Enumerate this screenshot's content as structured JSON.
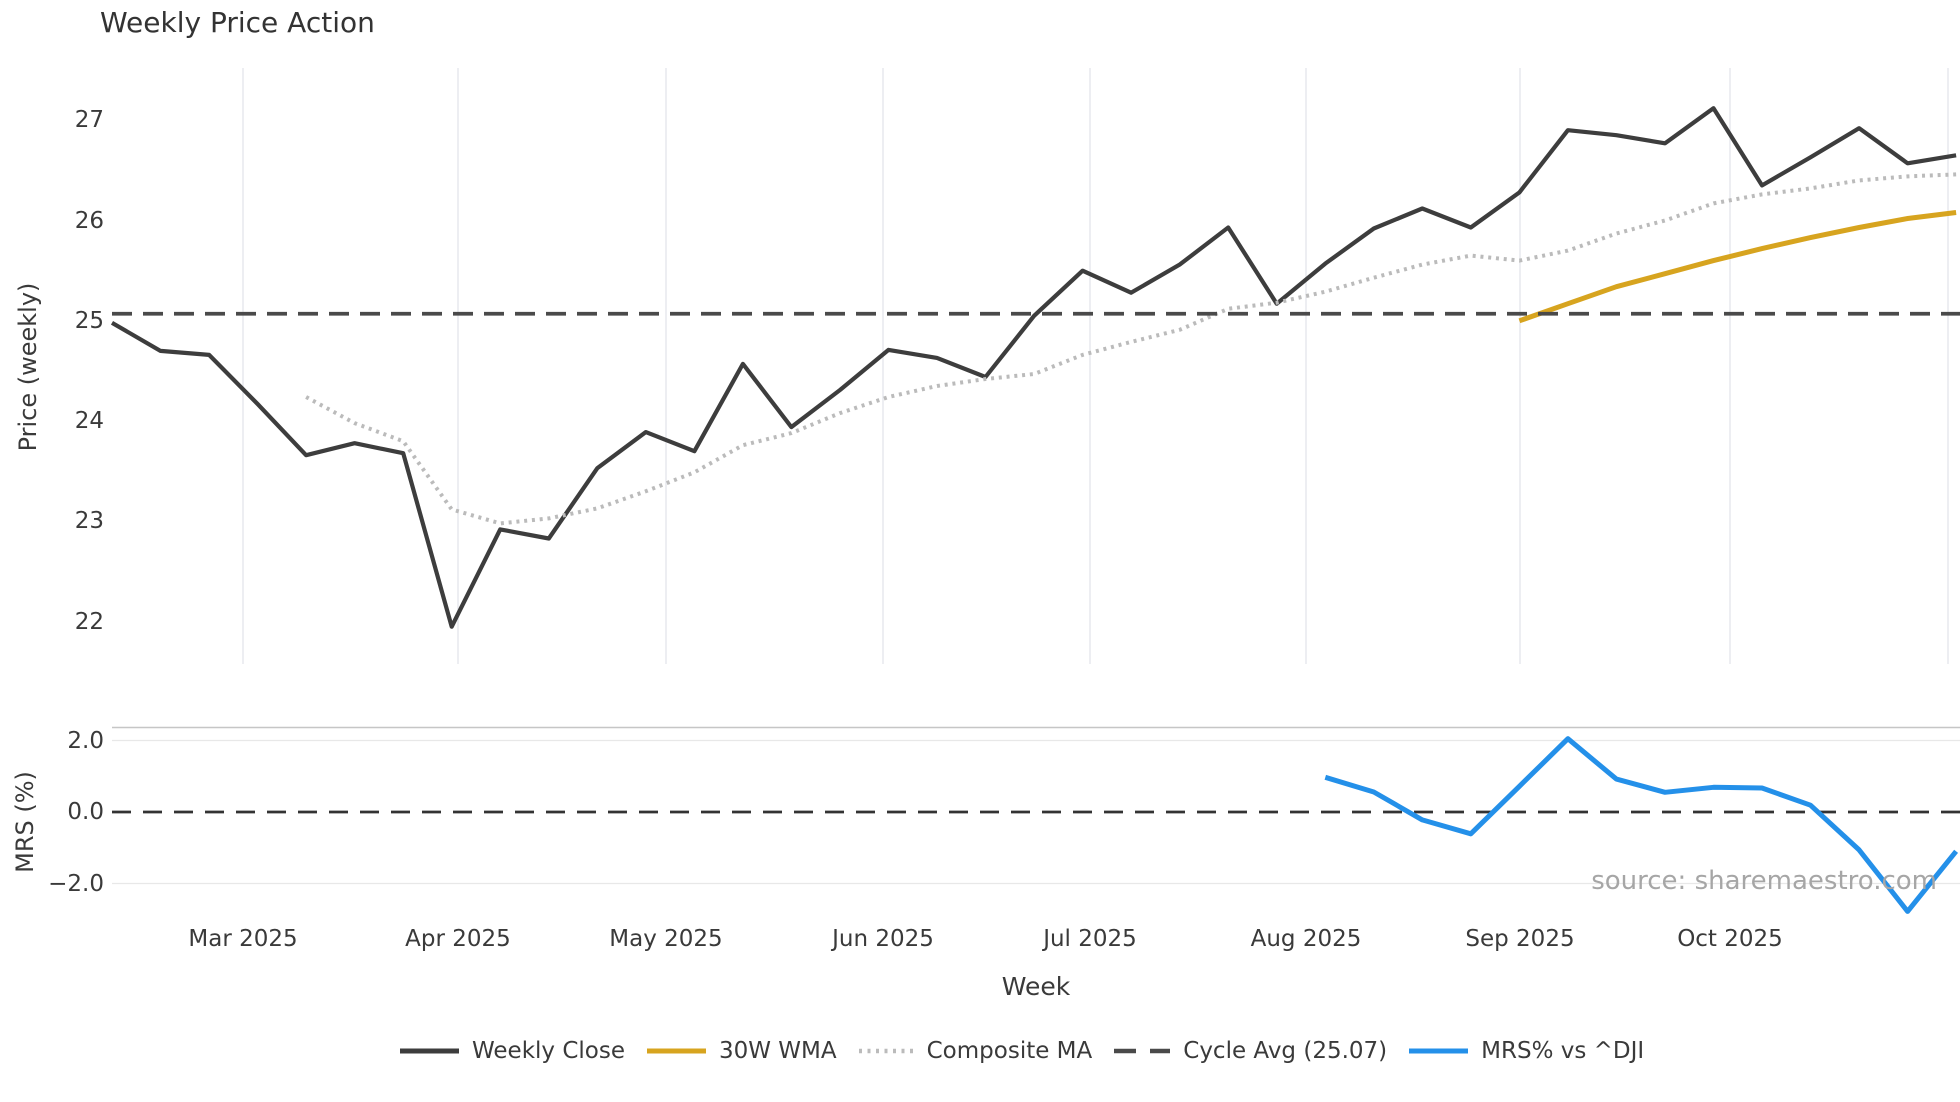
{
  "chart_data": {
    "type": "line",
    "title": "Weekly Price Action",
    "xlabel": "Week",
    "source_text": "source: sharemaestro.com",
    "top_panel": {
      "ylabel": "Price (weekly)",
      "y_ticks": [
        "27",
        "26",
        "25",
        "24",
        "23",
        "22"
      ],
      "y_tick_values": [
        27,
        26,
        25,
        24,
        23,
        22
      ],
      "ylim": [
        21.6,
        27.5
      ],
      "grid": "vertical-months-only"
    },
    "bottom_panel": {
      "ylabel": "MRS (%)",
      "y_ticks": [
        "2.0",
        "0.0",
        "−2.0"
      ],
      "y_tick_values": [
        2,
        0,
        -2
      ],
      "ylim": [
        -3.0,
        2.35
      ],
      "zero_line_value": 0
    },
    "x_tick_labels": [
      "Mar 2025",
      "Apr 2025",
      "May 2025",
      "Jun 2025",
      "Jul 2025",
      "Aug 2025",
      "Sep 2025",
      "Oct 2025"
    ],
    "weeks_total": 39,
    "series": [
      {
        "name": "Weekly Close",
        "panel": "top",
        "style": "solid",
        "color": "#3d3d3d",
        "width": 4.2,
        "start_week": 0,
        "values": [
          24.98,
          24.7,
          24.66,
          24.17,
          23.66,
          23.78,
          23.68,
          21.95,
          22.92,
          22.83,
          23.53,
          23.89,
          23.7,
          24.57,
          23.94,
          24.31,
          24.71,
          24.63,
          24.44,
          25.05,
          25.5,
          25.28,
          25.56,
          25.93,
          25.17,
          25.57,
          25.92,
          26.12,
          25.93,
          26.28,
          26.9,
          26.85,
          26.77,
          27.12,
          26.35,
          26.63,
          26.92,
          26.57,
          26.65
        ]
      },
      {
        "name": "30W WMA",
        "panel": "top",
        "style": "solid",
        "color": "#d7a41f",
        "width": 5,
        "start_week": 29,
        "values": [
          25.0,
          25.17,
          25.34,
          25.47,
          25.6,
          25.72,
          25.83,
          25.93,
          26.02,
          26.08
        ]
      },
      {
        "name": "Composite MA",
        "panel": "top",
        "style": "dotted",
        "color": "#bbbbbb",
        "width": 4,
        "start_week": 4,
        "values": [
          24.24,
          23.98,
          23.8,
          23.12,
          22.98,
          23.03,
          23.13,
          23.3,
          23.49,
          23.76,
          23.88,
          24.08,
          24.24,
          24.35,
          24.42,
          24.47,
          24.66,
          24.79,
          24.91,
          25.12,
          25.18,
          25.29,
          25.43,
          25.56,
          25.65,
          25.6,
          25.7,
          25.87,
          26.0,
          26.17,
          26.26,
          26.32,
          26.4,
          26.44,
          26.46
        ]
      },
      {
        "name": "Cycle Avg (25.07)",
        "panel": "top",
        "style": "dashed",
        "color": "#4a4a4a",
        "width": 3.8,
        "constant": 25.07
      },
      {
        "name": "MRS% vs ^DJI",
        "panel": "bottom",
        "style": "solid",
        "color": "#2490e9",
        "width": 5,
        "start_week": 25,
        "values": [
          0.97,
          0.56,
          -0.22,
          -0.61,
          0.72,
          2.05,
          0.92,
          0.55,
          0.69,
          0.67,
          0.19,
          -1.06,
          -2.78,
          -1.1
        ]
      }
    ],
    "legend": [
      {
        "label": "Weekly Close",
        "color": "#3d3d3d",
        "style": "solid"
      },
      {
        "label": "30W WMA",
        "color": "#d7a41f",
        "style": "solid"
      },
      {
        "label": "Composite MA",
        "color": "#bbbbbb",
        "style": "dotted"
      },
      {
        "label": "Cycle Avg (25.07)",
        "color": "#4a4a4a",
        "style": "dashed"
      },
      {
        "label": "MRS% vs ^DJI",
        "color": "#2490e9",
        "style": "solid"
      }
    ]
  }
}
